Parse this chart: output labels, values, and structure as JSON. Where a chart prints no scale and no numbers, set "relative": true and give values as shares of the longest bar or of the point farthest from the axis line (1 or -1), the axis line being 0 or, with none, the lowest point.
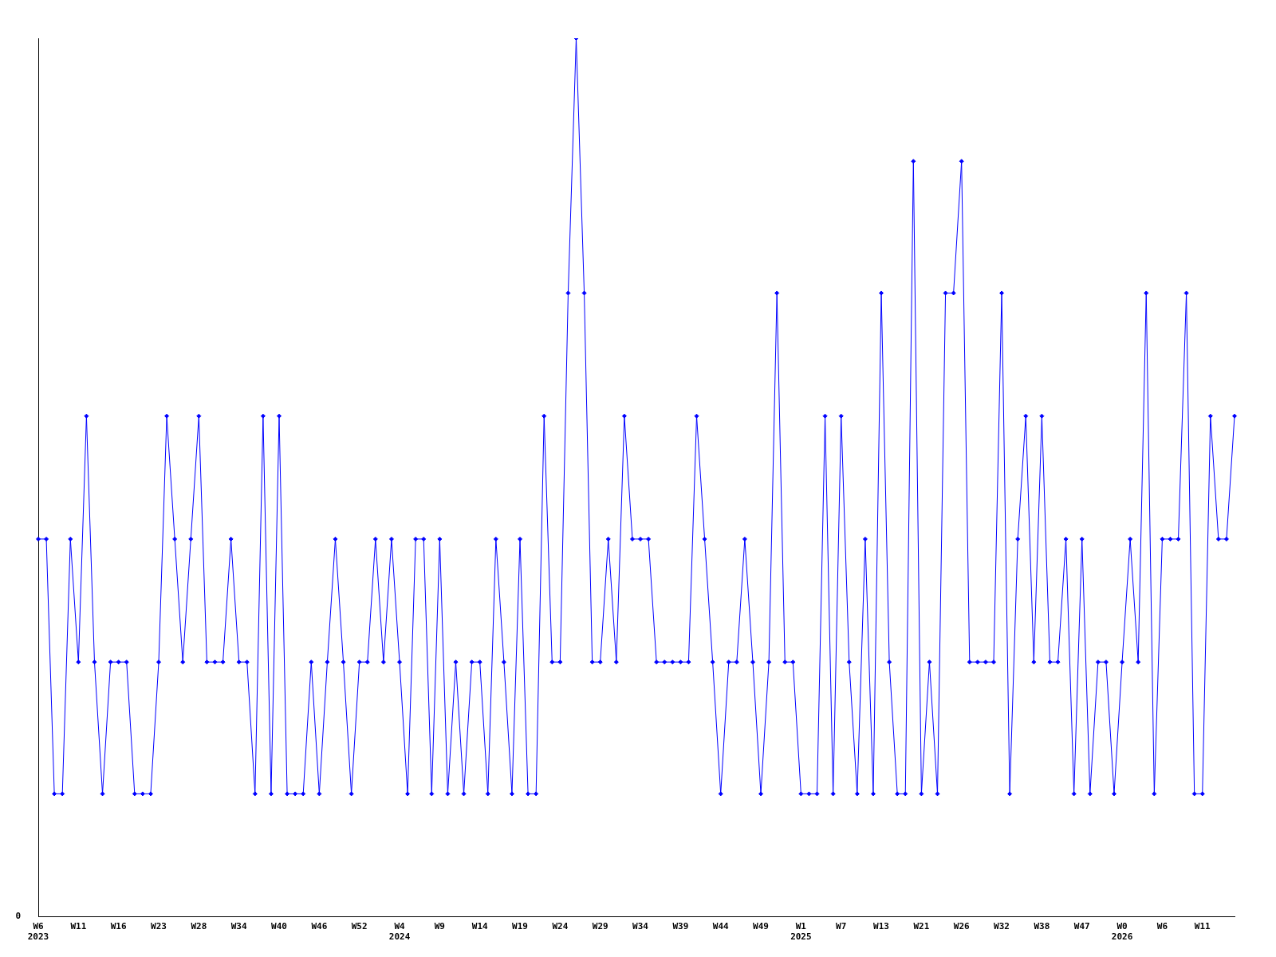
{
  "chart_data": {
    "type": "line",
    "relative": true,
    "grid": false,
    "legend": false,
    "marker": "diamond",
    "line_style": "solid",
    "annotations": [
      "0"
    ],
    "categories": [
      "W6\n2023",
      null,
      null,
      null,
      null,
      "W11",
      null,
      null,
      null,
      null,
      "W16",
      null,
      null,
      null,
      null,
      "W23",
      null,
      null,
      null,
      null,
      "W28",
      null,
      null,
      null,
      null,
      "W34",
      null,
      null,
      null,
      null,
      "W40",
      null,
      null,
      null,
      null,
      "W46",
      null,
      null,
      null,
      null,
      "W52",
      null,
      null,
      null,
      null,
      "W4\n2024",
      null,
      null,
      null,
      null,
      "W9",
      null,
      null,
      null,
      null,
      "W14",
      null,
      null,
      null,
      null,
      "W19",
      null,
      null,
      null,
      null,
      "W24",
      null,
      null,
      null,
      null,
      "W29",
      null,
      null,
      null,
      null,
      "W34",
      null,
      null,
      null,
      null,
      "W39",
      null,
      null,
      null,
      null,
      "W44",
      null,
      null,
      null,
      null,
      "W49",
      null,
      null,
      null,
      null,
      "W1\n2025",
      null,
      null,
      null,
      null,
      "W7",
      null,
      null,
      null,
      null,
      "W13",
      null,
      null,
      null,
      null,
      "W21",
      null,
      null,
      null,
      null,
      "W26",
      null,
      null,
      null,
      null,
      "W32",
      null,
      null,
      null,
      null,
      "W38",
      null,
      null,
      null,
      null,
      "W47",
      null,
      null,
      null,
      null,
      "W0\n2026",
      null,
      null,
      null,
      null,
      "W6",
      null,
      null,
      null,
      null,
      "W11",
      null,
      null,
      null,
      null
    ],
    "series": [
      {
        "color": "#0000ff",
        "values": [
          0.43,
          0.43,
          0.14,
          0.14,
          0.43,
          0.29,
          0.57,
          0.29,
          0.14,
          0.29,
          0.29,
          0.29,
          0.14,
          0.14,
          0.14,
          0.29,
          0.57,
          0.43,
          0.29,
          0.43,
          0.57,
          0.29,
          0.29,
          0.29,
          0.43,
          0.29,
          0.29,
          0.14,
          0.57,
          0.14,
          0.57,
          0.14,
          0.14,
          0.14,
          0.29,
          0.14,
          0.29,
          0.43,
          0.29,
          0.14,
          0.29,
          0.29,
          0.43,
          0.29,
          0.43,
          0.29,
          0.14,
          0.43,
          0.43,
          0.14,
          0.43,
          0.14,
          0.29,
          0.14,
          0.29,
          0.29,
          0.14,
          0.43,
          0.29,
          0.14,
          0.43,
          0.14,
          0.14,
          0.57,
          0.29,
          0.29,
          0.71,
          1,
          0.71,
          0.29,
          0.29,
          0.43,
          0.29,
          0.57,
          0.43,
          0.43,
          0.43,
          0.29,
          0.29,
          0.29,
          0.29,
          0.29,
          0.57,
          0.43,
          0.29,
          0.14,
          0.29,
          0.29,
          0.43,
          0.29,
          0.14,
          0.29,
          0.71,
          0.29,
          0.29,
          0.14,
          0.14,
          0.14,
          0.57,
          0.14,
          0.57,
          0.29,
          0.14,
          0.43,
          0.14,
          0.71,
          0.29,
          0.14,
          0.14,
          0.86,
          0.14,
          0.29,
          0.14,
          0.71,
          0.71,
          0.86,
          0.29,
          0.29,
          0.29,
          0.29,
          0.71,
          0.14,
          0.43,
          0.57,
          0.29,
          0.57,
          0.29,
          0.29,
          0.43,
          0.14,
          0.43,
          0.14,
          0.29,
          0.29,
          0.14,
          0.29,
          0.43,
          0.29,
          0.71,
          0.14,
          0.43,
          0.43,
          0.43,
          0.71,
          0.14,
          0.14,
          0.57,
          0.43,
          0.43,
          0.57
        ]
      }
    ]
  }
}
